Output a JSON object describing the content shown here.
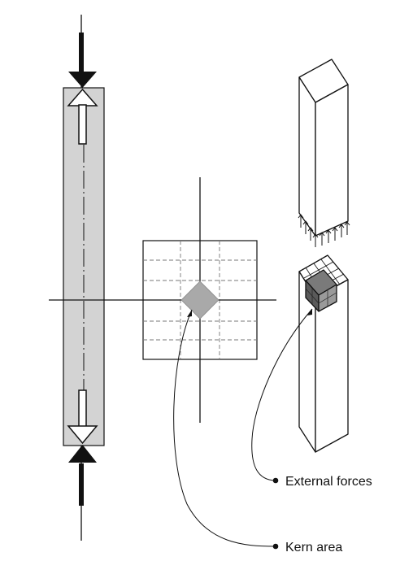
{
  "labels": {
    "external_forces": "External forces",
    "kern_area": "Kern area"
  },
  "colors": {
    "line": "#111111",
    "column_fill": "#d3d3d3",
    "kern_fill": "#a9a9a9",
    "background": "#ffffff"
  }
}
